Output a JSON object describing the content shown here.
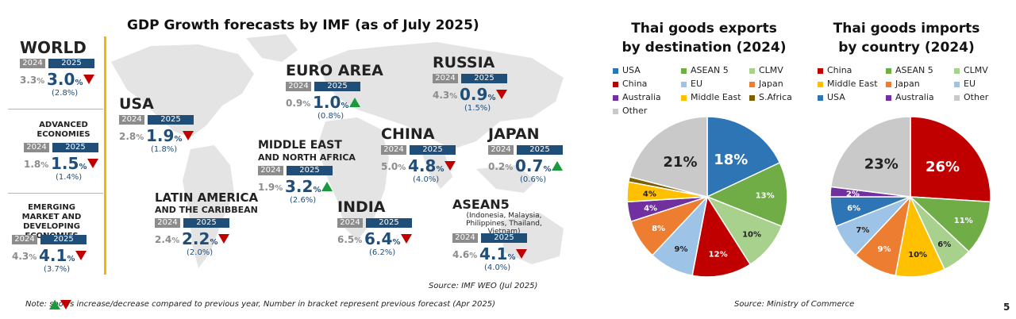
{
  "left": {
    "title": "GDP Growth forecasts by IMF (as of July 2025)",
    "year_a": "2024",
    "year_b": "2025",
    "pct": "%",
    "source": "Source: IMF WEO (Jul 2025)",
    "note": "Note:       shows increase/decrease compared to previous year, Number in bracket represent previous forecast (Apr 2025)",
    "regions": [
      {
        "name": "WORLD",
        "sub": "",
        "v2024": "3.3",
        "v2025": "3.0",
        "prev": "(2.8%)",
        "trend": "down"
      },
      {
        "name": "ADVANCED ECONOMIES",
        "sub": "",
        "v2024": "1.8",
        "v2025": "1.5",
        "prev": "(1.4%)",
        "trend": "down"
      },
      {
        "name": "EMERGING MARKET AND DEVELOPING ECONOMIES",
        "sub": "",
        "v2024": "4.3",
        "v2025": "4.1",
        "prev": "(3.7%)",
        "trend": "down"
      },
      {
        "name": "USA",
        "sub": "",
        "v2024": "2.8",
        "v2025": "1.9",
        "prev": "(1.8%)",
        "trend": "down"
      },
      {
        "name": "LATIN AMERICA",
        "sub": "AND THE CARIBBEAN",
        "v2024": "2.4",
        "v2025": "2.2",
        "prev": "(2.0%)",
        "trend": "down"
      },
      {
        "name": "EURO AREA",
        "sub": "",
        "v2024": "0.9",
        "v2025": "1.0",
        "prev": "(0.8%)",
        "trend": "up"
      },
      {
        "name": "MIDDLE EAST",
        "sub": "AND NORTH AFRICA",
        "v2024": "1.9",
        "v2025": "3.2",
        "prev": "(2.6%)",
        "trend": "up"
      },
      {
        "name": "INDIA",
        "sub": "",
        "v2024": "6.5",
        "v2025": "6.4",
        "prev": "(6.2%)",
        "trend": "down"
      },
      {
        "name": "RUSSIA",
        "sub": "",
        "v2024": "4.3",
        "v2025": "0.9",
        "prev": "(1.5%)",
        "trend": "down"
      },
      {
        "name": "CHINA",
        "sub": "",
        "v2024": "5.0",
        "v2025": "4.8",
        "prev": "(4.0%)",
        "trend": "down"
      },
      {
        "name": "JAPAN",
        "sub": "",
        "v2024": "0.2",
        "v2025": "0.7",
        "prev": "(0.6%)",
        "trend": "up"
      },
      {
        "name": "ASEAN5",
        "sub": "(Indonesia, Malaysia, Philippines, Thailand, Vietnam)",
        "v2024": "4.6",
        "v2025": "4.1",
        "prev": "(4.0%)",
        "trend": "down"
      }
    ]
  },
  "right": {
    "source": "Source: Ministry of Commerce",
    "page_number": "5"
  },
  "chart_data": [
    {
      "type": "pie",
      "title_line1": "Thai goods exports",
      "title_line2": "by destination (2024)",
      "legend": [
        "USA",
        "ASEAN 5",
        "CLMV",
        "China",
        "EU",
        "Japan",
        "Australia",
        "Middle East",
        "S.Africa",
        "Other"
      ],
      "colors": {
        "USA": "#2e75b6",
        "ASEAN 5": "#70ad47",
        "CLMV": "#a9d18e",
        "China": "#c00000",
        "EU": "#9dc3e6",
        "Japan": "#ed7d31",
        "Australia": "#7030a0",
        "Middle East": "#ffc000",
        "S.Africa": "#7f6000",
        "Other": "#c9c9c9"
      },
      "slices": [
        {
          "name": "USA",
          "value": 18,
          "label": "18%"
        },
        {
          "name": "ASEAN 5",
          "value": 13,
          "label": "13%"
        },
        {
          "name": "CLMV",
          "value": 10,
          "label": "10%"
        },
        {
          "name": "China",
          "value": 12,
          "label": "12%"
        },
        {
          "name": "EU",
          "value": 9,
          "label": "9%"
        },
        {
          "name": "Japan",
          "value": 8,
          "label": "8%"
        },
        {
          "name": "Australia",
          "value": 4,
          "label": "4%"
        },
        {
          "name": "Middle East",
          "value": 4,
          "label": "4%"
        },
        {
          "name": "S.Africa",
          "value": 1,
          "label": ""
        },
        {
          "name": "Other",
          "value": 21,
          "label": "21%"
        }
      ]
    },
    {
      "type": "pie",
      "title_line1": "Thai goods imports",
      "title_line2": "by country (2024)",
      "legend": [
        "China",
        "ASEAN 5",
        "CLMV",
        "Middle East",
        "Japan",
        "EU",
        "USA",
        "Australia",
        "Other"
      ],
      "colors": {
        "China": "#c00000",
        "ASEAN 5": "#70ad47",
        "CLMV": "#a9d18e",
        "Middle East": "#ffc000",
        "Japan": "#ed7d31",
        "EU": "#9dc3e6",
        "USA": "#2e75b6",
        "Australia": "#7030a0",
        "Other": "#c9c9c9"
      },
      "slices": [
        {
          "name": "China",
          "value": 26,
          "label": "26%"
        },
        {
          "name": "ASEAN 5",
          "value": 11,
          "label": "11%"
        },
        {
          "name": "CLMV",
          "value": 6,
          "label": "6%"
        },
        {
          "name": "Middle East",
          "value": 10,
          "label": "10%"
        },
        {
          "name": "Japan",
          "value": 9,
          "label": "9%"
        },
        {
          "name": "EU",
          "value": 7,
          "label": "7%"
        },
        {
          "name": "USA",
          "value": 6,
          "label": "6%"
        },
        {
          "name": "Australia",
          "value": 2,
          "label": "2%"
        },
        {
          "name": "Other",
          "value": 23,
          "label": "23%"
        }
      ]
    }
  ]
}
